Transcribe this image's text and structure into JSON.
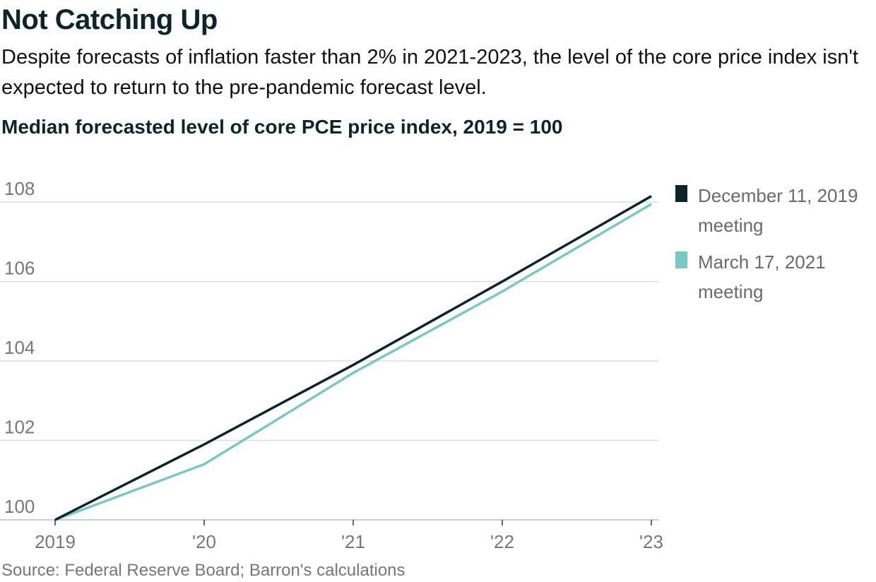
{
  "title": "Not Catching Up",
  "subtitle": "Despite forecasts of inflation faster than 2% in 2021-2023, the level of the core price index isn't expected to return to the pre-pandemic forecast level.",
  "source": "Source: Federal Reserve Board; Barron's calculations",
  "chart_data": {
    "type": "line",
    "title": "Median forecasted level of core PCE price index, 2019 = 100",
    "xlabel": "",
    "ylabel": "",
    "x": [
      2019,
      2020,
      2021,
      2022,
      2023
    ],
    "x_tick_labels": [
      "2019",
      "'20",
      "'21",
      "'22",
      "'23"
    ],
    "y_ticks": [
      100,
      102,
      104,
      106,
      108
    ],
    "ylim": [
      100,
      108.5
    ],
    "grid": true,
    "legend_position": "right",
    "series": [
      {
        "name": "December 11, 2019 meeting",
        "legend_line1": "December 11, 2019",
        "legend_line2": "meeting",
        "color": "#0d2528",
        "values": [
          100,
          101.9,
          103.9,
          106.0,
          108.15
        ]
      },
      {
        "name": "March 17, 2021 meeting",
        "legend_line1": "March 17, 2021",
        "legend_line2": "meeting",
        "color": "#7cc7c1",
        "values": [
          100,
          101.4,
          103.7,
          105.75,
          107.95
        ]
      }
    ]
  }
}
